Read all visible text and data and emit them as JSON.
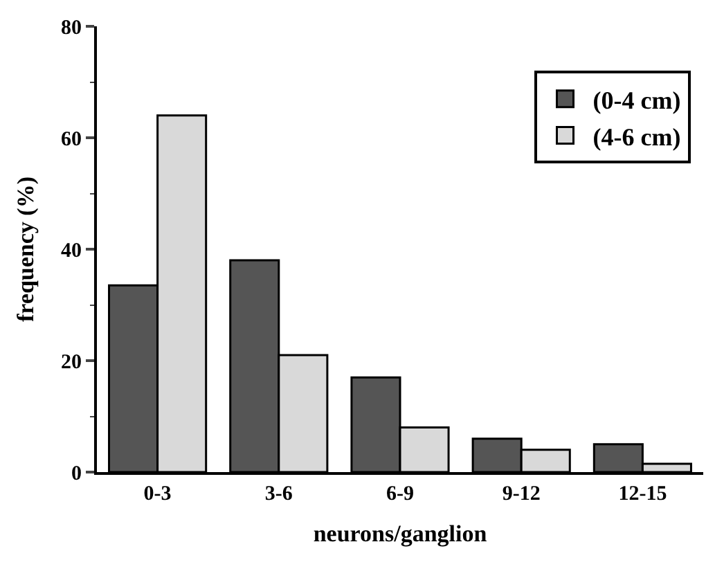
{
  "chart_data": {
    "type": "bar",
    "xlabel": "neurons/ganglion",
    "ylabel": "frequency (%)",
    "categories": [
      "0-3",
      "3-6",
      "6-9",
      "9-12",
      "12-15"
    ],
    "series": [
      {
        "name": "(0-4 cm)",
        "color": "#555555",
        "values": [
          33.5,
          38,
          17,
          6,
          5
        ]
      },
      {
        "name": "(4-6 cm)",
        "color": "#d9d9d9",
        "values": [
          64,
          21,
          8,
          4,
          1.5
        ]
      }
    ],
    "ylim": [
      0,
      80
    ],
    "yticks": [
      0,
      20,
      40,
      60,
      80
    ],
    "legend": "top right"
  }
}
